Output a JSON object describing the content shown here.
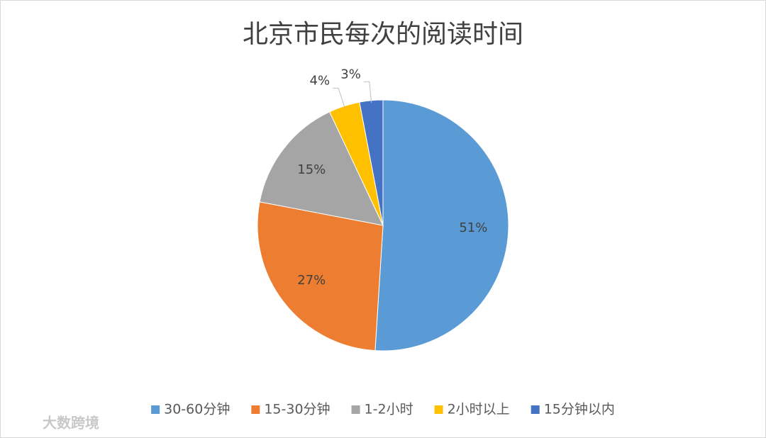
{
  "chart_data": {
    "type": "pie",
    "title": "北京市民每次的阅读时间",
    "categories": [
      "30-60分钟",
      "15-30分钟",
      "1-2小时",
      "2小时以上",
      "15分钟以内"
    ],
    "values": [
      51,
      27,
      15,
      4,
      3
    ],
    "value_labels": [
      "51%",
      "27%",
      "15%",
      "4%",
      "3%"
    ],
    "colors": [
      "#5b9bd5",
      "#ed7d31",
      "#a5a5a5",
      "#ffc000",
      "#4472c4"
    ],
    "legend": "bottom"
  },
  "watermark": "大数跨境"
}
